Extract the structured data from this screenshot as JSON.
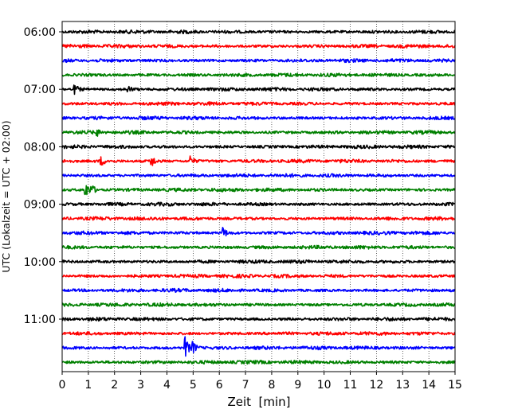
{
  "chart_data": {
    "type": "line",
    "subtype": "helicorder",
    "xlabel": "Zeit  [min]",
    "ylabel": "UTC (Lokalzeit = UTC + 02:00)",
    "xlim": [
      0,
      15
    ],
    "xticks": [
      "0",
      "1",
      "2",
      "3",
      "4",
      "5",
      "6",
      "7",
      "8",
      "9",
      "10",
      "11",
      "12",
      "13",
      "14",
      "15"
    ],
    "ytick_labels": [
      "06:00",
      "07:00",
      "08:00",
      "09:00",
      "10:00",
      "11:00"
    ],
    "grid": "vertical dotted lines at each minute",
    "trace_colors": [
      "#000000",
      "#ff0000",
      "#0000ff",
      "#008000"
    ],
    "start_time": "06:00",
    "line_interval_min": 15,
    "trace_count": 24,
    "events": [
      {
        "line": 4,
        "minute": 0.5,
        "amplitude": 0.55
      },
      {
        "line": 4,
        "minute": 2.5,
        "amplitude": 0.45
      },
      {
        "line": 7,
        "minute": 1.3,
        "amplitude": 0.5
      },
      {
        "line": 9,
        "minute": 1.5,
        "amplitude": 0.55
      },
      {
        "line": 9,
        "minute": 3.4,
        "amplitude": 0.9
      },
      {
        "line": 9,
        "minute": 4.9,
        "amplitude": 0.6
      },
      {
        "line": 11,
        "minute": 0.9,
        "amplitude": 1.0
      },
      {
        "line": 11,
        "minute": 1.1,
        "amplitude": 0.8
      },
      {
        "line": 14,
        "minute": 6.15,
        "amplitude": 0.7
      },
      {
        "line": 22,
        "minute": 4.72,
        "amplitude": 1.4
      },
      {
        "line": 22,
        "minute": 4.98,
        "amplitude": 1.0
      }
    ]
  }
}
